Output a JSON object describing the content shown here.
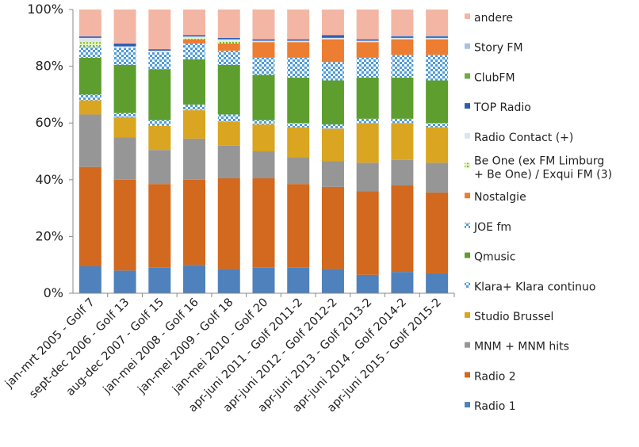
{
  "chart_data": {
    "type": "bar",
    "stacked": true,
    "percent": true,
    "ylim": [
      0,
      100
    ],
    "yticks": [
      "0%",
      "20%",
      "40%",
      "60%",
      "80%",
      "100%"
    ],
    "legend_position": "right",
    "categories": [
      "jan-mrt 2005 - Golf 7",
      "sept-dec 2006 - Golf 13",
      "aug-dec 2007 - Golf 15",
      "jan-mei 2008 - Golf 16",
      "jan-mei 2009 - Golf 18",
      "jan-mei 2010 - Golf 20",
      "apr-juni 2011 - Golf 2011-2",
      "apr-juni 2012 - Golf 2012-2",
      "apr-juni 2013 - Golf 2013-2",
      "apr-juni 2014 - Golf 2014-2",
      "apr-juni 2015 - Golf 2015-2"
    ],
    "series": [
      {
        "name": "Radio 1",
        "color": "#4f81bd",
        "pattern": "solid",
        "values": [
          9.5,
          8.0,
          9.0,
          10.0,
          8.5,
          9.0,
          9.0,
          8.5,
          6.5,
          7.5,
          7.0
        ]
      },
      {
        "name": "Radio 2",
        "color": "#d2691e",
        "pattern": "solid",
        "values": [
          35.0,
          32.0,
          29.5,
          30.0,
          32.0,
          31.5,
          29.5,
          29.0,
          29.5,
          30.5,
          28.5
        ]
      },
      {
        "name": "MNM + MNM hits",
        "color": "#969696",
        "pattern": "solid",
        "values": [
          18.5,
          15.0,
          12.0,
          14.5,
          11.5,
          9.5,
          9.5,
          9.0,
          10.0,
          9.0,
          10.5
        ]
      },
      {
        "name": "Studio Brussel",
        "color": "#daa520",
        "pattern": "solid",
        "values": [
          5.0,
          7.0,
          8.5,
          10.0,
          8.5,
          9.5,
          10.5,
          11.5,
          14.0,
          13.0,
          12.5
        ]
      },
      {
        "name": "Klara+ Klara continuo",
        "color": "#4f9bd9",
        "pattern": "checker",
        "values": [
          2.0,
          1.5,
          2.0,
          2.0,
          2.5,
          1.5,
          1.5,
          1.5,
          1.5,
          1.5,
          1.5
        ]
      },
      {
        "name": "Qmusic",
        "color": "#5e9e2e",
        "pattern": "solid",
        "values": [
          13.0,
          17.0,
          18.0,
          16.0,
          17.5,
          16.0,
          16.0,
          15.5,
          14.5,
          14.5,
          15.0
        ]
      },
      {
        "name": "JOE fm",
        "color": "#4f9bd9",
        "pattern": "checker",
        "values": [
          4.0,
          6.0,
          6.0,
          5.5,
          5.0,
          6.0,
          7.0,
          6.5,
          7.0,
          8.0,
          9.0
        ]
      },
      {
        "name": "Nostalgie",
        "color": "#ed7d31",
        "pattern": "solid",
        "values": [
          0.0,
          0.0,
          0.0,
          1.5,
          2.5,
          5.5,
          5.5,
          8.0,
          5.5,
          5.5,
          5.5
        ]
      },
      {
        "name": "Be One (ex FM Limburg + Be One) / Exqui FM (3)",
        "color": "#9acd32",
        "pattern": "dots",
        "values": [
          1.5,
          0.0,
          0.0,
          0.5,
          1.0,
          0.0,
          0.0,
          0.0,
          0.0,
          0.0,
          0.0
        ]
      },
      {
        "name": "Radio Contact (+)",
        "color": "#dce6f2",
        "pattern": "solid",
        "values": [
          1.5,
          0.5,
          0.5,
          0.5,
          0.5,
          0.5,
          0.5,
          0.5,
          0.5,
          0.5,
          0.5
        ]
      },
      {
        "name": "TOP Radio",
        "color": "#2f5fb3",
        "pattern": "solid",
        "values": [
          0.5,
          1.0,
          0.5,
          0.5,
          0.5,
          0.5,
          0.5,
          1.0,
          0.5,
          0.5,
          0.5
        ]
      },
      {
        "name": "ClubFM",
        "color": "#70ad47",
        "pattern": "solid",
        "values": [
          0.0,
          0.0,
          0.0,
          0.0,
          0.0,
          0.0,
          0.0,
          0.0,
          0.0,
          0.0,
          0.0
        ]
      },
      {
        "name": "Story FM",
        "color": "#a4c2e3",
        "pattern": "solid",
        "values": [
          0.0,
          0.0,
          0.0,
          0.0,
          0.0,
          0.0,
          0.0,
          0.0,
          0.0,
          0.5,
          0.5
        ]
      },
      {
        "name": "andere",
        "color": "#f4b6a4",
        "pattern": "solid",
        "values": [
          9.5,
          12.0,
          14.0,
          9.0,
          10.0,
          10.5,
          10.5,
          9.0,
          10.5,
          9.0,
          9.0
        ]
      }
    ]
  }
}
